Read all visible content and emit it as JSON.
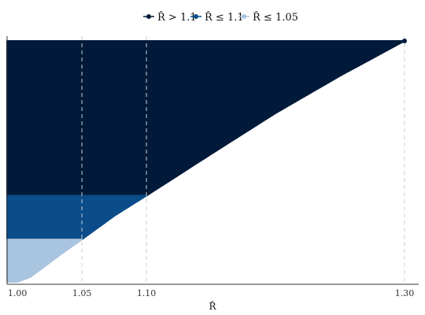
{
  "chart_data": {
    "type": "area",
    "xlabel": "R̂",
    "x_ticks": [
      {
        "value": 1.0,
        "label": "1.00"
      },
      {
        "value": 1.05,
        "label": "1.05"
      },
      {
        "value": 1.1,
        "label": "1.10"
      },
      {
        "value": 1.3,
        "label": "1.30"
      }
    ],
    "xlim": [
      0.992,
      1.311
    ],
    "ylim": [
      0,
      1
    ],
    "vlines": [
      1.05,
      1.1,
      1.3
    ],
    "grid": false,
    "legend_position": "top",
    "series": [
      {
        "name": "R̂ > 1.1",
        "color": "#011a3a",
        "threshold": 1.1
      },
      {
        "name": "R̂ ≤ 1.1",
        "color": "#0b4c8a",
        "threshold": 1.05
      },
      {
        "name": "R̂ ≤ 1.05",
        "color": "#a8c4df",
        "threshold": null
      }
    ],
    "sorted_rhat": {
      "x": [
        1.0,
        1.01,
        1.02,
        1.035,
        1.05,
        1.075,
        1.1,
        1.15,
        1.2,
        1.25,
        1.3
      ],
      "quantile": [
        0.0,
        0.02,
        0.06,
        0.12,
        0.176,
        0.274,
        0.358,
        0.53,
        0.7,
        0.855,
        1.0
      ]
    }
  }
}
